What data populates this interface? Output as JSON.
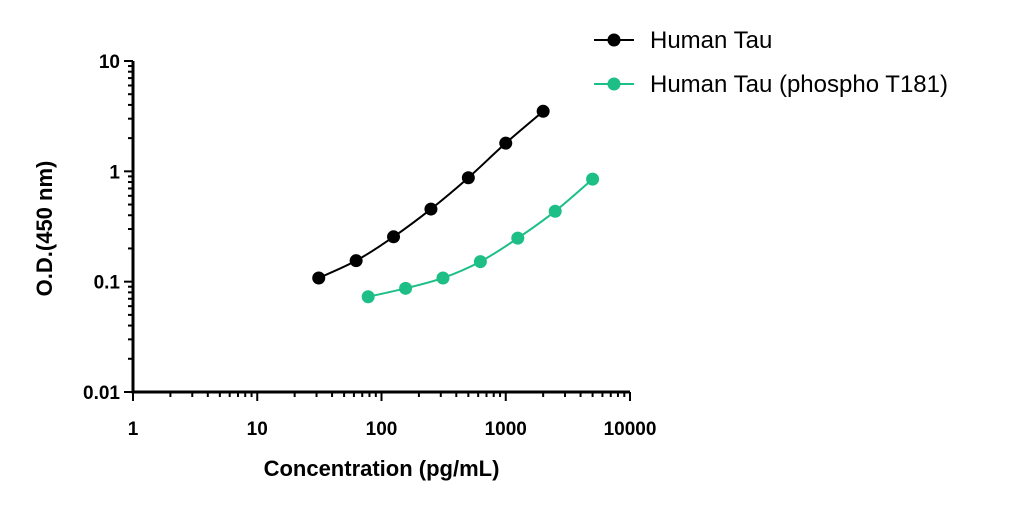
{
  "chart_data": {
    "type": "line",
    "xlabel": "Concentration (pg/mL)",
    "ylabel": "O.D.(450 nm)",
    "x_scale": "log",
    "y_scale": "log",
    "xlim": [
      1,
      10000
    ],
    "ylim": [
      0.01,
      10
    ],
    "x_ticks": [
      "1",
      "10",
      "100",
      "1000",
      "10000"
    ],
    "y_ticks": [
      "0.01",
      "0.1",
      "1",
      "10"
    ],
    "grid": false,
    "legend_position": "top-right",
    "series": [
      {
        "name": "Human Tau",
        "color": "#000000",
        "marker": "circle",
        "x": [
          31.25,
          62.5,
          125,
          250,
          500,
          1000,
          2000
        ],
        "y": [
          0.108,
          0.155,
          0.255,
          0.455,
          0.875,
          1.8,
          3.5
        ]
      },
      {
        "name": "Human Tau (phospho T181)",
        "color": "#1dbf86",
        "marker": "circle",
        "x": [
          78.1,
          156.25,
          312.5,
          625,
          1250,
          2500,
          5000
        ],
        "y": [
          0.073,
          0.087,
          0.108,
          0.152,
          0.248,
          0.435,
          0.85
        ]
      }
    ]
  }
}
